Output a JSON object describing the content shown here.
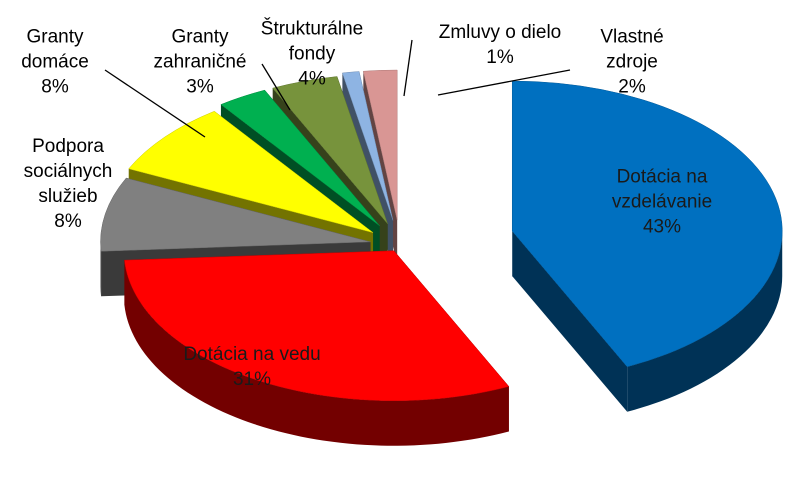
{
  "chart_data": {
    "type": "pie",
    "categories": [
      "Dotácia na vzdelávanie",
      "Dotácia na vedu",
      "Podpora sociálnych služieb",
      "Granty domáce",
      "Granty zahraničné",
      "Štrukturálne fondy",
      "Zmluvy o dielo",
      "Vlastné zdroje"
    ],
    "values": [
      43,
      31,
      8,
      8,
      3,
      4,
      1,
      2
    ],
    "value_labels": [
      "43%",
      "31%",
      "8%",
      "8%",
      "3%",
      "4%",
      "1%",
      "2%"
    ],
    "colors": [
      "#0070c0",
      "#ff0000",
      "#808080",
      "#ffff00",
      "#00b050",
      "#77933c",
      "#8eb4e3",
      "#d99694"
    ]
  }
}
